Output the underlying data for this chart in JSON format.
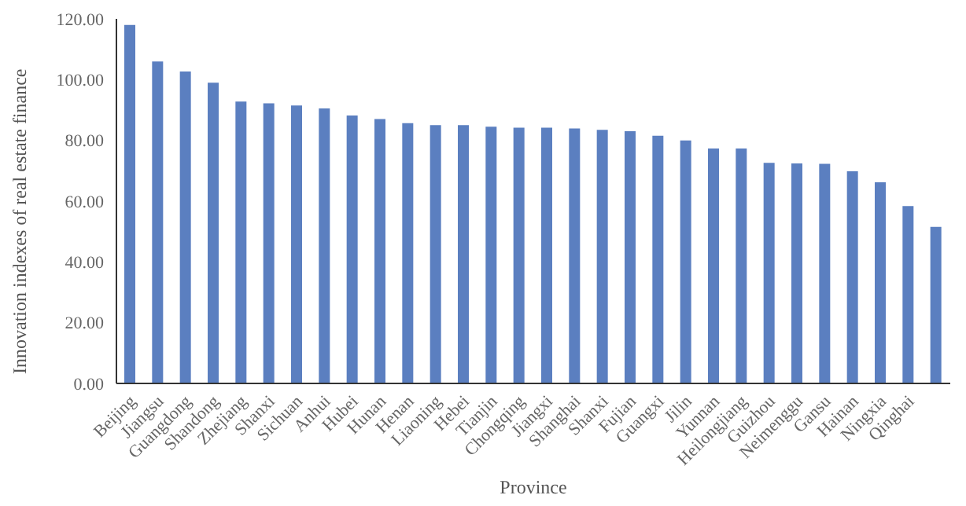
{
  "chart_data": {
    "type": "bar",
    "xlabel": "Province",
    "ylabel": "Innovation indexes of real estate finance",
    "categories": [
      "Beijing",
      "Jiangsu",
      "Guangdong",
      "Shandong",
      "Zhejiang",
      "Shanxi",
      "Sichuan",
      "Anhui",
      "Hubei",
      "Hunan",
      "Henan",
      "Liaoning",
      "Hebei",
      "Tianjin",
      "Chongqing",
      "Jiangxi",
      "Shanghai",
      "Shanxi",
      "Fujian",
      "Guangxi",
      "Jilin",
      "Yunnan",
      "Heilongjiang",
      "Guizhou",
      "Neimenggu",
      "Gansu",
      "Hainan",
      "Ningxia",
      "Qinghai",
      null
    ],
    "values": [
      118,
      106,
      102.7,
      99,
      92.8,
      92.2,
      91.5,
      90.5,
      88.2,
      87,
      85.7,
      85,
      85,
      84.5,
      84.2,
      84.2,
      83.9,
      83.5,
      83,
      81.5,
      80,
      77.3,
      77.3,
      72.6,
      72.4,
      72.3,
      69.8,
      66.2,
      58.4,
      51.5
    ],
    "color": "#5b7fc0",
    "ylim": [
      0,
      120
    ],
    "yticks": [
      {
        "value": 0,
        "label": "0.00"
      },
      {
        "value": 20,
        "label": "20.00"
      },
      {
        "value": 40,
        "label": "40.00"
      },
      {
        "value": 60,
        "label": "60.00"
      },
      {
        "value": 80,
        "label": "80.00"
      },
      {
        "value": 100,
        "label": "100.00"
      },
      {
        "value": 120,
        "label": "120.00"
      }
    ],
    "grid": false,
    "legend": false
  }
}
